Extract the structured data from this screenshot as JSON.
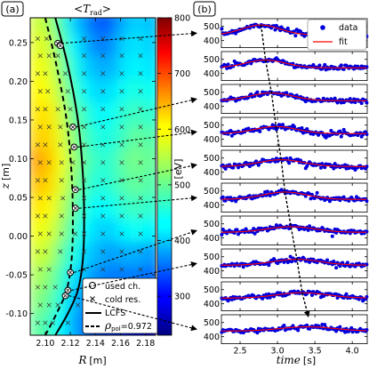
{
  "chart_data": [
    {
      "type": "heatmap",
      "panel_label": "(a)",
      "title": "<T_rad>",
      "title_parts": {
        "open": "<",
        "sym": "T",
        "sub": "rad",
        "close": ">"
      },
      "xlabel": {
        "sym": "R",
        "unit": "[m]"
      },
      "ylabel": {
        "sym": "z",
        "unit": "[m]"
      },
      "xlim": [
        2.088,
        2.188
      ],
      "ylim": [
        -0.128,
        0.282
      ],
      "xticks": [
        "2.10",
        "2.12",
        "2.14",
        "2.16",
        "2.18"
      ],
      "xtick_values": [
        2.1,
        2.12,
        2.14,
        2.16,
        2.18
      ],
      "yticks": [
        "0.25",
        "0.20",
        "0.15",
        "0.10",
        "0.05",
        "0.00",
        "-0.05",
        "-0.10"
      ],
      "ytick_values": [
        0.25,
        0.2,
        0.15,
        0.1,
        0.05,
        0.0,
        -0.05,
        -0.1
      ],
      "colorbar": {
        "label": "[eV]",
        "range": [
          230,
          800
        ],
        "ticks": [
          "800",
          "700",
          "600",
          "500",
          "400",
          "300"
        ],
        "tick_values": [
          800,
          700,
          600,
          500,
          400,
          300
        ],
        "colormap": "jet"
      },
      "grid_R": [
        2.095,
        2.105,
        2.115,
        2.125,
        2.135,
        2.145,
        2.155,
        2.165,
        2.175,
        2.185
      ],
      "grid_z": [
        0.27,
        0.24,
        0.21,
        0.18,
        0.15,
        0.12,
        0.09,
        0.06,
        0.03,
        0.0,
        -0.03,
        -0.06,
        -0.09,
        -0.12
      ],
      "temperature_eV": [
        [
          560,
          540,
          480,
          420,
          380,
          350,
          360,
          400,
          420,
          410
        ],
        [
          570,
          560,
          500,
          440,
          400,
          370,
          380,
          420,
          430,
          420
        ],
        [
          580,
          570,
          520,
          460,
          420,
          400,
          400,
          430,
          440,
          430
        ],
        [
          590,
          580,
          540,
          480,
          440,
          420,
          430,
          450,
          460,
          450
        ],
        [
          600,
          600,
          560,
          500,
          470,
          440,
          450,
          470,
          480,
          470
        ],
        [
          610,
          610,
          570,
          520,
          480,
          460,
          460,
          480,
          500,
          490
        ],
        [
          640,
          620,
          580,
          530,
          490,
          470,
          470,
          500,
          510,
          500
        ],
        [
          620,
          610,
          570,
          520,
          480,
          460,
          470,
          490,
          500,
          490
        ],
        [
          600,
          590,
          550,
          500,
          460,
          440,
          450,
          470,
          480,
          470
        ],
        [
          580,
          570,
          530,
          480,
          440,
          420,
          420,
          440,
          450,
          440
        ],
        [
          560,
          550,
          500,
          460,
          420,
          400,
          390,
          400,
          400,
          390
        ],
        [
          540,
          520,
          480,
          430,
          400,
          380,
          370,
          370,
          370,
          360
        ],
        [
          520,
          500,
          460,
          410,
          380,
          360,
          350,
          340,
          330,
          320
        ],
        [
          500,
          480,
          440,
          400,
          360,
          340,
          330,
          320,
          310,
          300
        ]
      ],
      "lcfs": {
        "R": [
          2.108,
          2.118,
          2.126,
          2.13,
          2.131,
          2.13,
          2.126,
          2.118,
          2.108
        ],
        "z": [
          0.282,
          0.22,
          0.15,
          0.08,
          0.02,
          -0.03,
          -0.07,
          -0.1,
          -0.128
        ]
      },
      "rho_surface": {
        "R": [
          2.1,
          2.109,
          2.117,
          2.121,
          2.122,
          2.121,
          2.117,
          2.109,
          2.1
        ],
        "z": [
          0.282,
          0.22,
          0.15,
          0.08,
          0.02,
          -0.03,
          -0.07,
          -0.1,
          -0.128
        ]
      },
      "used_channels": [
        {
          "R": 2.11,
          "z": 0.249
        },
        {
          "R": 2.112,
          "z": 0.246
        },
        {
          "R": 2.122,
          "z": 0.141
        },
        {
          "R": 2.123,
          "z": 0.115
        },
        {
          "R": 2.124,
          "z": 0.06
        },
        {
          "R": 2.124,
          "z": 0.036
        },
        {
          "R": 2.12,
          "z": -0.047
        },
        {
          "R": 2.118,
          "z": -0.07
        },
        {
          "R": 2.116,
          "z": -0.077
        }
      ],
      "cold_res_rows": [
        {
          "z": 0.255,
          "R": [
            2.094,
            2.101,
            2.131,
            2.146,
            2.161,
            2.176
          ]
        },
        {
          "z": 0.233,
          "R": [
            2.096,
            2.103,
            2.11,
            2.131,
            2.146,
            2.161,
            2.176
          ]
        },
        {
          "z": 0.21,
          "R": [
            2.094,
            2.1,
            2.116,
            2.131,
            2.146,
            2.161,
            2.176
          ]
        },
        {
          "z": 0.187,
          "R": [
            2.096,
            2.102,
            2.118,
            2.131,
            2.146,
            2.161,
            2.176
          ]
        },
        {
          "z": 0.164,
          "R": [
            2.094,
            2.1,
            2.11,
            2.12,
            2.131,
            2.146,
            2.161,
            2.176
          ]
        },
        {
          "z": 0.141,
          "R": [
            2.096,
            2.103,
            2.112,
            2.131,
            2.146,
            2.161,
            2.176
          ]
        },
        {
          "z": 0.118,
          "R": [
            2.094,
            2.1,
            2.112,
            2.131,
            2.146,
            2.161,
            2.176
          ]
        },
        {
          "z": 0.095,
          "R": [
            2.096,
            2.103,
            2.113,
            2.122,
            2.131,
            2.146,
            2.161,
            2.176
          ]
        },
        {
          "z": 0.072,
          "R": [
            2.094,
            2.1,
            2.113,
            2.131,
            2.146,
            2.161,
            2.176
          ]
        },
        {
          "z": 0.049,
          "R": [
            2.096,
            2.103,
            2.114,
            2.131,
            2.146,
            2.161,
            2.176
          ]
        },
        {
          "z": 0.026,
          "R": [
            2.094,
            2.1,
            2.113,
            2.131,
            2.146,
            2.161,
            2.176
          ]
        },
        {
          "z": 0.003,
          "R": [
            2.096,
            2.103,
            2.113,
            2.124,
            2.131,
            2.146,
            2.161,
            2.176
          ]
        },
        {
          "z": -0.02,
          "R": [
            2.094,
            2.1,
            2.112,
            2.131,
            2.146,
            2.161,
            2.176
          ]
        },
        {
          "z": -0.043,
          "R": [
            2.096,
            2.103,
            2.131,
            2.146,
            2.161,
            2.176
          ]
        },
        {
          "z": -0.066,
          "R": [
            2.094,
            2.1,
            2.108,
            2.131,
            2.146
          ]
        },
        {
          "z": -0.089,
          "R": [
            2.096,
            2.103,
            2.11,
            2.126
          ]
        },
        {
          "z": -0.112,
          "R": [
            2.094,
            2.1,
            2.106,
            2.118
          ]
        }
      ],
      "legend": [
        {
          "marker": "open-circle",
          "label": "used ch."
        },
        {
          "marker": "x",
          "label": "cold res."
        },
        {
          "marker": "solid-line",
          "label": "LCFS"
        },
        {
          "marker": "dashed-line",
          "label": "ρpol=0.972",
          "label_parts": {
            "sym": "ρ",
            "sub": "pol",
            "rest": "=0.972"
          }
        }
      ]
    },
    {
      "type": "scatter",
      "panel_label": "(b)",
      "xlabel": {
        "sym": "time",
        "unit": "[s]"
      },
      "xlim": [
        2.25,
        4.2
      ],
      "xticks": [
        "2.5",
        "3.0",
        "3.5",
        "4.0"
      ],
      "xtick_values": [
        2.5,
        3.0,
        3.5,
        4.0
      ],
      "ylim": [
        350,
        555
      ],
      "yticks": [
        "500",
        "400"
      ],
      "ytick_values": [
        500,
        400
      ],
      "legend": [
        {
          "marker": "blue-dot",
          "label": "data"
        },
        {
          "marker": "red-line",
          "label": "fit"
        }
      ],
      "colors": {
        "data": "#0000dd",
        "fit": "#ff0000"
      },
      "series": [
        {
          "channel": 1,
          "base": 440,
          "amplitude": 70,
          "peak_time": 2.78,
          "width": 0.36
        },
        {
          "channel": 2,
          "base": 440,
          "amplitude": 55,
          "peak_time": 2.84,
          "width": 0.38
        },
        {
          "channel": 3,
          "base": 440,
          "amplitude": 55,
          "peak_time": 2.92,
          "width": 0.4
        },
        {
          "channel": 4,
          "base": 440,
          "amplitude": 50,
          "peak_time": 2.98,
          "width": 0.4
        },
        {
          "channel": 5,
          "base": 440,
          "amplitude": 48,
          "peak_time": 3.05,
          "width": 0.42
        },
        {
          "channel": 6,
          "base": 440,
          "amplitude": 52,
          "peak_time": 3.1,
          "width": 0.42
        },
        {
          "channel": 7,
          "base": 440,
          "amplitude": 40,
          "peak_time": 3.18,
          "width": 0.45
        },
        {
          "channel": 8,
          "base": 440,
          "amplitude": 42,
          "peak_time": 3.26,
          "width": 0.45
        },
        {
          "channel": 9,
          "base": 440,
          "amplitude": 38,
          "peak_time": 3.33,
          "width": 0.48
        },
        {
          "channel": 10,
          "base": 440,
          "amplitude": 30,
          "peak_time": 3.4,
          "width": 0.5
        }
      ],
      "peak_trace": {
        "t": [
          2.78,
          2.84,
          2.92,
          2.98,
          3.05,
          3.1,
          3.18,
          3.26,
          3.33,
          3.4
        ]
      }
    }
  ]
}
